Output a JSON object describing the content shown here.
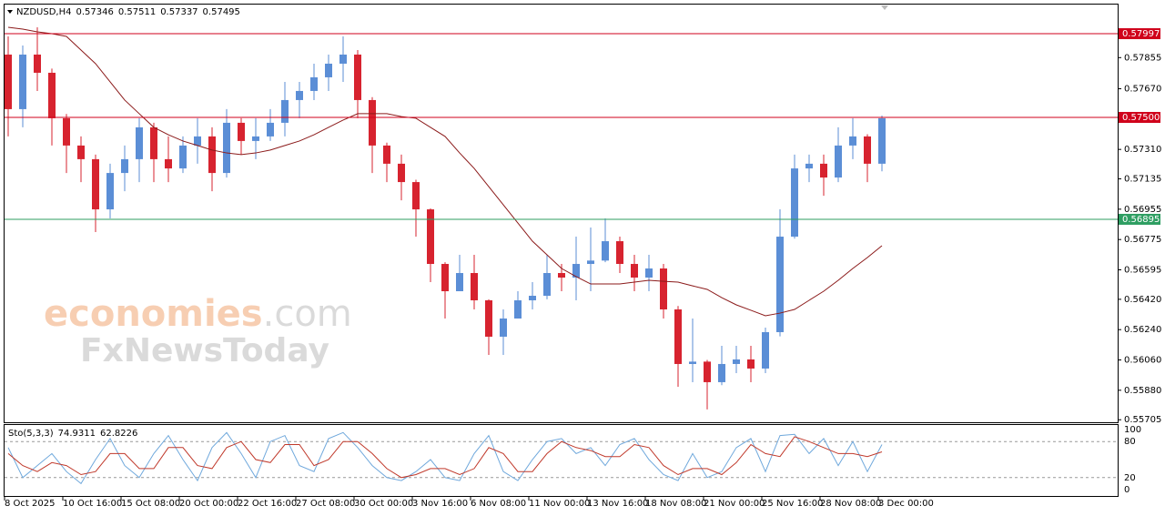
{
  "chart_data": {
    "type": "candlestick",
    "quote": {
      "symbol": "NZDUSD,H4",
      "open": 0.57346,
      "high": 0.57511,
      "low": 0.57337,
      "close": 0.57495
    },
    "categories": [
      "8 Oct 2025",
      null,
      null,
      null,
      "10 Oct 16:00",
      null,
      null,
      null,
      "15 Oct 08:00",
      null,
      null,
      null,
      "20 Oct 00:00",
      null,
      null,
      null,
      "22 Oct 16:00",
      null,
      null,
      null,
      "27 Oct 08:00",
      null,
      null,
      null,
      "30 Oct 00:00",
      null,
      null,
      null,
      "3 Nov 16:00",
      null,
      null,
      null,
      "6 Nov 08:00",
      null,
      null,
      null,
      "11 Nov 00:00",
      null,
      null,
      null,
      "13 Nov 16:00",
      null,
      null,
      null,
      "18 Nov 08:00",
      null,
      null,
      null,
      "21 Nov 00:00",
      null,
      null,
      null,
      "25 Nov 16:00",
      null,
      null,
      null,
      "28 Nov 08:00",
      null,
      null,
      null,
      "3 Dec 00:00"
    ],
    "open": [
      0.57873,
      0.57549,
      0.57873,
      0.57765,
      0.57495,
      0.57333,
      0.57252,
      0.56954,
      0.5717,
      0.57252,
      0.57441,
      0.57252,
      0.57197,
      0.57333,
      0.57387,
      0.5717,
      0.57468,
      0.5736,
      0.57387,
      0.57468,
      0.57603,
      0.57657,
      0.57738,
      0.57819,
      0.57873,
      0.57603,
      0.57333,
      0.57225,
      0.57116,
      0.56954,
      0.5663,
      0.56468,
      0.56576,
      0.56414,
      0.56198,
      0.56306,
      0.56414,
      0.56441,
      0.56576,
      0.56549,
      0.5663,
      0.5665,
      0.56765,
      0.5663,
      0.56549,
      0.56603,
      0.5636,
      0.56036,
      0.5605,
      0.55928,
      0.56036,
      0.56063,
      0.56009,
      0.56225,
      0.56792,
      0.57197,
      0.57225,
      0.57143,
      0.57333,
      0.57387,
      0.57225
    ],
    "high": [
      0.57981,
      0.57927,
      0.58035,
      0.5779,
      0.5752,
      0.57387,
      0.57279,
      0.57225,
      0.57333,
      0.57495,
      0.57468,
      0.57387,
      0.57387,
      0.57495,
      0.57441,
      0.57549,
      0.57495,
      0.57495,
      0.57549,
      0.57711,
      0.57711,
      0.57819,
      0.57873,
      0.57981,
      0.579,
      0.5762,
      0.5735,
      0.57279,
      0.5713,
      0.5696,
      0.5664,
      0.56684,
      0.56684,
      0.5642,
      0.5636,
      0.56468,
      0.56522,
      0.56684,
      0.5663,
      0.56792,
      0.56846,
      0.569,
      0.56792,
      0.56684,
      0.56684,
      0.5663,
      0.5638,
      0.56306,
      0.5606,
      0.56144,
      0.56144,
      0.56144,
      0.56252,
      0.56954,
      0.57279,
      0.57279,
      0.57279,
      0.57441,
      0.57495,
      0.574,
      0.57511
    ],
    "low": [
      0.57387,
      0.57441,
      0.57657,
      0.57333,
      0.5717,
      0.57116,
      0.56819,
      0.569,
      0.57062,
      0.57116,
      0.57116,
      0.57116,
      0.5717,
      0.57225,
      0.57062,
      0.57143,
      0.57279,
      0.57252,
      0.5736,
      0.57387,
      0.57495,
      0.57603,
      0.57657,
      0.57711,
      0.57495,
      0.5717,
      0.57116,
      0.57008,
      0.56792,
      0.56522,
      0.56306,
      0.56468,
      0.5636,
      0.5609,
      0.5609,
      0.56306,
      0.5636,
      0.5642,
      0.56468,
      0.56414,
      0.56468,
      0.5664,
      0.56576,
      0.56468,
      0.56468,
      0.56306,
      0.55901,
      0.55928,
      0.55766,
      0.5591,
      0.55982,
      0.55928,
      0.55982,
      0.562,
      0.5678,
      0.57116,
      0.57035,
      0.57116,
      0.57252,
      0.57116,
      0.5718
    ],
    "close": [
      0.57549,
      0.57873,
      0.57765,
      0.57495,
      0.57333,
      0.57252,
      0.56954,
      0.5717,
      0.57252,
      0.57441,
      0.57252,
      0.57197,
      0.57333,
      0.57387,
      0.5717,
      0.57468,
      0.5736,
      0.57387,
      0.57468,
      0.57603,
      0.57657,
      0.57738,
      0.57819,
      0.57873,
      0.57603,
      0.57333,
      0.57225,
      0.57116,
      0.56954,
      0.5663,
      0.56468,
      0.56576,
      0.56414,
      0.56198,
      0.56306,
      0.56414,
      0.56441,
      0.56576,
      0.56549,
      0.5663,
      0.5665,
      0.56765,
      0.5663,
      0.56549,
      0.56603,
      0.5636,
      0.56036,
      0.5605,
      0.55928,
      0.56036,
      0.56063,
      0.56009,
      0.56225,
      0.56792,
      0.57197,
      0.57225,
      0.57143,
      0.57333,
      0.57387,
      0.57225,
      0.57495
    ],
    "up_color": "#5b8ed6",
    "down_color": "#d7232f",
    "ma": {
      "color": "#8b1a1a",
      "values": [
        0.58035,
        0.58024,
        0.58008,
        0.57997,
        0.57981,
        0.579,
        0.57819,
        0.57711,
        0.57603,
        0.57522,
        0.57441,
        0.57397,
        0.5736,
        0.57333,
        0.57306,
        0.57289,
        0.57279,
        0.57289,
        0.57306,
        0.57333,
        0.5736,
        0.57397,
        0.57441,
        0.57484,
        0.57522,
        0.57522,
        0.57522,
        0.57505,
        0.57495,
        0.57441,
        0.57387,
        0.57289,
        0.57197,
        0.57089,
        0.56981,
        0.56873,
        0.56765,
        0.56684,
        0.56603,
        0.56555,
        0.56511,
        0.56511,
        0.56511,
        0.56522,
        0.56533,
        0.56527,
        0.56522,
        0.565,
        0.56479,
        0.5643,
        0.56387,
        0.56355,
        0.56322,
        0.56338,
        0.5636,
        0.56414,
        0.56468,
        0.56533,
        0.56603,
        0.56668,
        0.56738
      ]
    },
    "ylim": [
      0.5569,
      0.5817
    ],
    "yticks": [
      0.57855,
      {
        "value": 0.5767,
        "label": "0.57670"
      },
      {
        "value": 0.5731,
        "label": "0.57310"
      },
      0.57135,
      0.56955,
      0.56775,
      0.56595,
      {
        "value": 0.5642,
        "label": "0.56420"
      },
      {
        "value": 0.5624,
        "label": "0.56240"
      },
      {
        "value": 0.5606,
        "label": "0.56060"
      },
      {
        "value": 0.5588,
        "label": "0.55880"
      },
      0.55705
    ],
    "levels": [
      {
        "value": 0.57997,
        "color": "#d0021b"
      },
      {
        "value": 0.575,
        "label": "0.57500",
        "color": "#d0021b"
      },
      {
        "value": 0.56895,
        "color": "#2e9e62"
      }
    ],
    "stochastic": {
      "label": "Sto(5,3,3)",
      "ylim": [
        0,
        100
      ],
      "yticks": [
        0,
        20,
        80,
        100
      ],
      "k": {
        "color": "#6fa8dc",
        "values": [
          70,
          20,
          40,
          60,
          30,
          10,
          50,
          85,
          40,
          20,
          60,
          90,
          50,
          15,
          70,
          95,
          60,
          20,
          80,
          90,
          40,
          30,
          85,
          95,
          70,
          40,
          20,
          15,
          30,
          50,
          20,
          15,
          60,
          90,
          30,
          15,
          50,
          80,
          85,
          60,
          70,
          40,
          75,
          85,
          50,
          25,
          15,
          60,
          20,
          30,
          70,
          85,
          30,
          90,
          92,
          60,
          85,
          40,
          80,
          30,
          74.9311
        ]
      },
      "d": {
        "color": "#c0392b",
        "values": [
          60,
          40,
          30,
          45,
          40,
          25,
          30,
          60,
          60,
          35,
          35,
          70,
          70,
          40,
          35,
          70,
          80,
          50,
          45,
          75,
          75,
          40,
          50,
          80,
          80,
          60,
          35,
          20,
          25,
          35,
          35,
          25,
          35,
          70,
          60,
          30,
          30,
          60,
          80,
          70,
          65,
          55,
          55,
          75,
          70,
          40,
          25,
          35,
          35,
          25,
          45,
          75,
          60,
          55,
          88,
          80,
          70,
          60,
          60,
          55,
          62.8226
        ]
      }
    },
    "watermark": {
      "brand": "economies",
      "suffix": ".com",
      "second": "FxNewsToday"
    }
  }
}
